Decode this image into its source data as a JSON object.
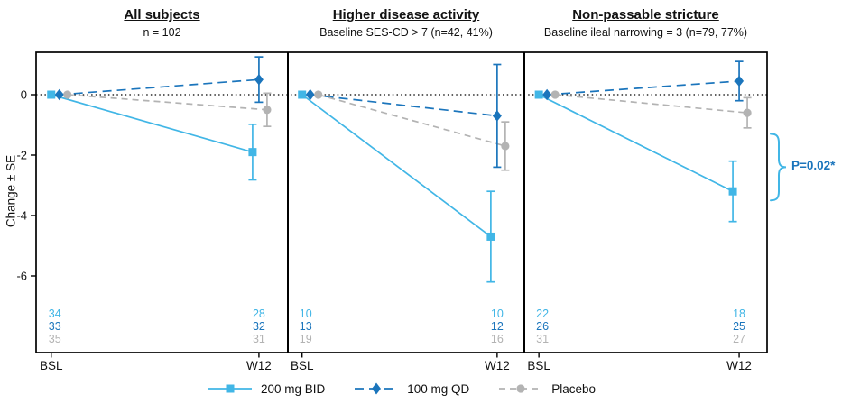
{
  "chart_data": {
    "type": "line",
    "title": "",
    "ylabel": "Change ± SE",
    "xlabel": "",
    "x_categories": [
      "BSL",
      "W12"
    ],
    "yticks": [
      0,
      -2,
      -4,
      -6
    ],
    "ylim": [
      1.4,
      -8.55
    ],
    "grid": false,
    "legend_position": "bottom",
    "zero_reference_line": true,
    "series_styles": [
      {
        "id": "bid-200mg",
        "name": "200 mg BID",
        "color": "#41b6e6",
        "marker": "square",
        "line": "solid"
      },
      {
        "id": "qd-100mg",
        "name": "100 mg QD",
        "color": "#1b75bc",
        "marker": "diamond",
        "line": "long-dash"
      },
      {
        "id": "placebo",
        "name": "Placebo",
        "color": "#b3b3b3",
        "marker": "circle",
        "line": "dash"
      }
    ],
    "panels": [
      {
        "title": "All subjects",
        "subtitle": "n = 102",
        "series": [
          {
            "id": "bid-200mg",
            "values": [
              0,
              -1.9
            ],
            "se": [
              0,
              0.92
            ],
            "n": [
              34,
              28
            ]
          },
          {
            "id": "qd-100mg",
            "values": [
              0,
              0.5
            ],
            "se": [
              0,
              0.75
            ],
            "n": [
              33,
              32
            ]
          },
          {
            "id": "placebo",
            "values": [
              0,
              -0.5
            ],
            "se": [
              0,
              0.55
            ],
            "n": [
              35,
              31
            ]
          }
        ]
      },
      {
        "title": "Higher disease activity",
        "subtitle": "Baseline SES-CD > 7 (n=42, 41%)",
        "series": [
          {
            "id": "bid-200mg",
            "values": [
              0,
              -4.7
            ],
            "se": [
              0,
              1.5
            ],
            "n": [
              10,
              10
            ]
          },
          {
            "id": "qd-100mg",
            "values": [
              0,
              -0.7
            ],
            "se": [
              0,
              1.7
            ],
            "n": [
              13,
              12
            ]
          },
          {
            "id": "placebo",
            "values": [
              0,
              -1.7
            ],
            "se": [
              0,
              0.8
            ],
            "n": [
              19,
              16
            ]
          }
        ]
      },
      {
        "title": "Non-passable stricture",
        "subtitle": "Baseline ileal narrowing = 3 (n=79, 77%)",
        "series": [
          {
            "id": "bid-200mg",
            "values": [
              0,
              -3.2
            ],
            "se": [
              0,
              1.0
            ],
            "n": [
              22,
              18
            ]
          },
          {
            "id": "qd-100mg",
            "values": [
              0,
              0.45
            ],
            "se": [
              0,
              0.65
            ],
            "n": [
              26,
              25
            ]
          },
          {
            "id": "placebo",
            "values": [
              0,
              -0.6
            ],
            "se": [
              0,
              0.5
            ],
            "n": [
              31,
              27
            ]
          }
        ]
      }
    ],
    "annotation": {
      "label": "P=0.02*",
      "panel": 2,
      "y_top": -1.3,
      "y_bottom": -3.5,
      "text_color": "#1b75bc",
      "brace_color": "#41b6e6"
    }
  }
}
